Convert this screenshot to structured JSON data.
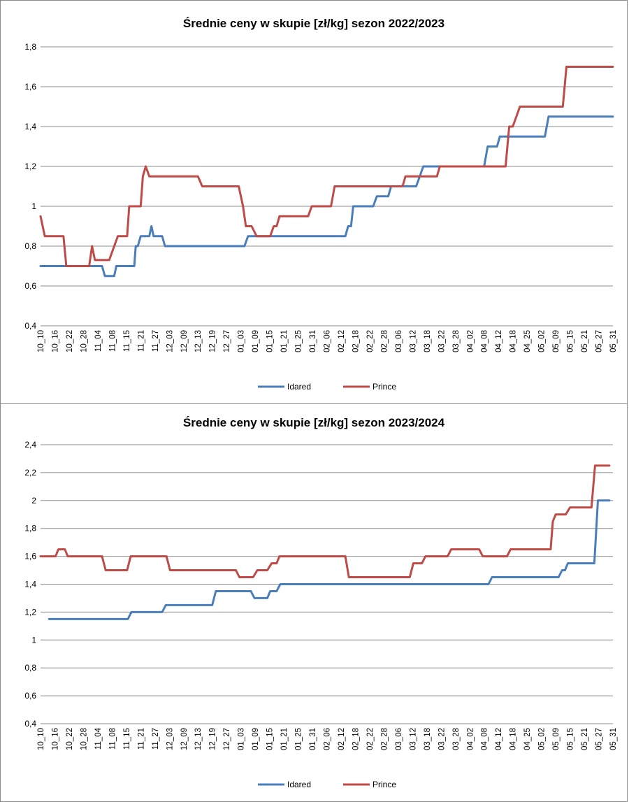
{
  "chart_data": [
    {
      "type": "line",
      "title": "Średnie ceny w skupie [zł/kg] sezon 2022/2023",
      "ylim": [
        0.4,
        1.8
      ],
      "yticks": [
        "0,4",
        "0,6",
        "0,8",
        "1",
        "1,2",
        "1,4",
        "1,6",
        "1,8"
      ],
      "ytick_values": [
        0.4,
        0.6,
        0.8,
        1.0,
        1.2,
        1.4,
        1.6,
        1.8
      ],
      "grid": true,
      "legend": "bottom",
      "x_labels": [
        "10_10",
        "10_16",
        "10_22",
        "10_28",
        "11_04",
        "11_08",
        "11_15",
        "11_21",
        "11_27",
        "12_03",
        "12_09",
        "12_13",
        "12_19",
        "12_27",
        "01_03",
        "01_09",
        "01_15",
        "01_21",
        "01_25",
        "01_31",
        "02_06",
        "02_12",
        "02_18",
        "02_22",
        "02_28",
        "03_06",
        "03_12",
        "03_18",
        "03_22",
        "03_28",
        "04_02",
        "04_08",
        "04_12",
        "04_18",
        "04_25",
        "05_02",
        "05_09",
        "05_15",
        "05_21",
        "05_27",
        "05_31"
      ],
      "x_max_index": 40,
      "series": [
        {
          "name": "Idared",
          "color": "#4a7ebb",
          "points": [
            [
              0,
              0.7
            ],
            [
              3.5,
              0.7
            ],
            [
              4,
              0.7
            ],
            [
              4.9,
              0.7
            ],
            [
              5.1,
              0.7
            ],
            [
              5.3,
              0.7
            ],
            [
              6.4,
              0.7
            ],
            [
              6.6,
              0.7
            ],
            [
              8,
              0.7
            ],
            [
              8.3,
              0.7
            ],
            [
              8.6,
              0.7
            ],
            [
              9,
              0.65
            ],
            [
              10.3,
              0.65
            ],
            [
              10.6,
              0.7
            ],
            [
              12,
              0.7
            ],
            [
              13.1,
              0.7
            ],
            [
              13.3,
              0.8
            ],
            [
              13.6,
              0.8
            ],
            [
              14,
              0.85
            ],
            [
              15.2,
              0.85
            ],
            [
              15.5,
              0.9
            ],
            [
              15.8,
              0.85
            ],
            [
              16.6,
              0.85
            ],
            [
              17,
              0.85
            ],
            [
              17.4,
              0.8
            ],
            [
              28.2,
              0.8
            ],
            [
              28.5,
              0.8
            ],
            [
              29,
              0.85
            ],
            [
              31.9,
              0.85
            ],
            [
              32.2,
              0.85
            ],
            [
              34,
              0.85
            ],
            [
              42.6,
              0.85
            ],
            [
              43,
              0.9
            ],
            [
              43.4,
              0.9
            ],
            [
              43.7,
              1.0
            ],
            [
              46.5,
              1.0
            ],
            [
              47,
              1.05
            ],
            [
              48.6,
              1.05
            ],
            [
              49,
              1.1
            ],
            [
              52.5,
              1.1
            ],
            [
              53.5,
              1.2
            ],
            [
              62,
              1.2
            ],
            [
              62.5,
              1.3
            ],
            [
              63.8,
              1.3
            ],
            [
              64.2,
              1.35
            ],
            [
              70.5,
              1.35
            ],
            [
              71,
              1.45
            ],
            [
              80,
              1.45
            ]
          ]
        },
        {
          "name": "Prince",
          "color": "#be4b48",
          "points": [
            [
              0,
              0.95
            ],
            [
              0.6,
              0.85
            ],
            [
              3.2,
              0.85
            ],
            [
              3.6,
              0.7
            ],
            [
              6.8,
              0.7
            ],
            [
              7.2,
              0.8
            ],
            [
              7.6,
              0.73
            ],
            [
              9.6,
              0.73
            ],
            [
              10.8,
              0.85
            ],
            [
              12.1,
              0.85
            ],
            [
              12.4,
              1.0
            ],
            [
              14,
              1.0
            ],
            [
              14.3,
              1.15
            ],
            [
              14.7,
              1.2
            ],
            [
              15.2,
              1.15
            ],
            [
              22,
              1.15
            ],
            [
              22.6,
              1.1
            ],
            [
              27.7,
              1.1
            ],
            [
              28.3,
              1.0
            ],
            [
              28.7,
              0.9
            ],
            [
              29.5,
              0.9
            ],
            [
              30.2,
              0.85
            ],
            [
              32.1,
              0.85
            ],
            [
              32.6,
              0.9
            ],
            [
              33,
              0.9
            ],
            [
              33.4,
              0.95
            ],
            [
              37.4,
              0.95
            ],
            [
              37.9,
              1.0
            ],
            [
              40.6,
              1.0
            ],
            [
              41.1,
              1.1
            ],
            [
              50.6,
              1.1
            ],
            [
              51,
              1.15
            ],
            [
              55.4,
              1.15
            ],
            [
              55.8,
              1.2
            ],
            [
              65,
              1.2
            ],
            [
              65.5,
              1.4
            ],
            [
              66,
              1.4
            ],
            [
              67,
              1.5
            ],
            [
              73,
              1.5
            ],
            [
              73.5,
              1.7
            ],
            [
              80,
              1.7
            ]
          ]
        }
      ],
      "x_points_max": 80
    },
    {
      "type": "line",
      "title": "Średnie ceny w skupie [zł/kg] sezon 2023/2024",
      "ylim": [
        0.4,
        2.4
      ],
      "yticks": [
        "0,4",
        "0,6",
        "0,8",
        "1",
        "1,2",
        "1,4",
        "1,6",
        "1,8",
        "2",
        "2,2",
        "2,4"
      ],
      "ytick_values": [
        0.4,
        0.6,
        0.8,
        1.0,
        1.2,
        1.4,
        1.6,
        1.8,
        2.0,
        2.2,
        2.4
      ],
      "grid": true,
      "legend": "bottom",
      "x_labels": [
        "10_10",
        "10_16",
        "10_22",
        "10_28",
        "11_04",
        "11_08",
        "11_15",
        "11_21",
        "11_27",
        "12_03",
        "12_09",
        "12_13",
        "12_19",
        "12_27",
        "01_03",
        "01_09",
        "01_15",
        "01_21",
        "01_25",
        "01_31",
        "02_06",
        "02_12",
        "02_18",
        "02_22",
        "02_28",
        "03_06",
        "03_12",
        "03_18",
        "03_22",
        "03_28",
        "04_02",
        "04_08",
        "04_12",
        "04_18",
        "04_25",
        "05_02",
        "05_09",
        "05_15",
        "05_21",
        "05_27",
        "05_31"
      ],
      "x_max_index": 40,
      "series": [
        {
          "name": "Idared",
          "color": "#4a7ebb",
          "points": [
            [
              1.2,
              1.15
            ],
            [
              12.2,
              1.15
            ],
            [
              12.7,
              1.2
            ],
            [
              17,
              1.2
            ],
            [
              17.5,
              1.25
            ],
            [
              24,
              1.25
            ],
            [
              24.5,
              1.35
            ],
            [
              29.4,
              1.35
            ],
            [
              29.9,
              1.3
            ],
            [
              31.7,
              1.3
            ],
            [
              32.1,
              1.35
            ],
            [
              33,
              1.35
            ],
            [
              33.5,
              1.4
            ],
            [
              62.6,
              1.4
            ],
            [
              63.1,
              1.45
            ],
            [
              72.4,
              1.45
            ],
            [
              72.9,
              1.5
            ],
            [
              73.3,
              1.5
            ],
            [
              73.7,
              1.55
            ],
            [
              77.4,
              1.55
            ],
            [
              77.9,
              2.0
            ],
            [
              79.5,
              2.0
            ]
          ]
        },
        {
          "name": "Prince",
          "color": "#be4b48",
          "points": [
            [
              0,
              1.6
            ],
            [
              2.1,
              1.6
            ],
            [
              2.5,
              1.65
            ],
            [
              3.4,
              1.65
            ],
            [
              3.8,
              1.6
            ],
            [
              8.6,
              1.6
            ],
            [
              9.1,
              1.5
            ],
            [
              12.1,
              1.5
            ],
            [
              12.6,
              1.6
            ],
            [
              17.6,
              1.6
            ],
            [
              18.1,
              1.5
            ],
            [
              27.3,
              1.5
            ],
            [
              27.8,
              1.45
            ],
            [
              29.7,
              1.45
            ],
            [
              30.3,
              1.5
            ],
            [
              31.7,
              1.5
            ],
            [
              32.3,
              1.55
            ],
            [
              33,
              1.55
            ],
            [
              33.4,
              1.6
            ],
            [
              42.6,
              1.6
            ],
            [
              43.1,
              1.45
            ],
            [
              51.6,
              1.45
            ],
            [
              52.1,
              1.55
            ],
            [
              53.3,
              1.55
            ],
            [
              53.8,
              1.6
            ],
            [
              56.9,
              1.6
            ],
            [
              57.4,
              1.65
            ],
            [
              61.3,
              1.65
            ],
            [
              61.8,
              1.6
            ],
            [
              65.2,
              1.6
            ],
            [
              65.7,
              1.65
            ],
            [
              71.3,
              1.65
            ],
            [
              71.6,
              1.85
            ],
            [
              72,
              1.9
            ],
            [
              73.4,
              1.9
            ],
            [
              74,
              1.95
            ],
            [
              77,
              1.95
            ],
            [
              77.5,
              2.25
            ],
            [
              79.5,
              2.25
            ]
          ]
        }
      ],
      "x_points_max": 80
    }
  ]
}
